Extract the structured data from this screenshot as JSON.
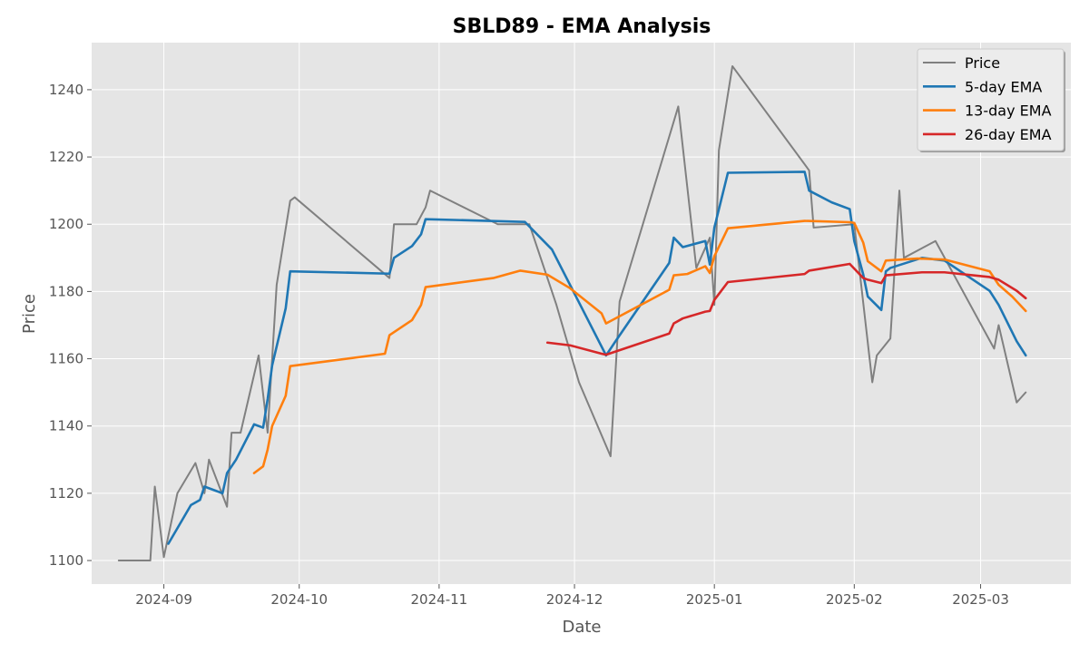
{
  "chart_data": {
    "type": "line",
    "title": "SBLD89 - EMA Analysis",
    "xlabel": "Date",
    "ylabel": "Price",
    "xlim": [
      "2024-08-16",
      "2025-03-21"
    ],
    "ylim": [
      1093,
      1254
    ],
    "x_ticks": [
      "2024-09-01",
      "2024-10-01",
      "2024-11-01",
      "2024-12-01",
      "2025-01-01",
      "2025-02-01",
      "2025-03-01"
    ],
    "x_tick_labels": [
      "2024-09",
      "2024-10",
      "2024-11",
      "2024-12",
      "2025-01",
      "2025-02",
      "2025-03"
    ],
    "y_ticks": [
      1100,
      1120,
      1140,
      1160,
      1180,
      1200,
      1220,
      1240
    ],
    "grid": true,
    "legend_position": "top-right",
    "series": [
      {
        "name": "Price",
        "color": "#808080",
        "points": [
          [
            "2024-08-22",
            1100
          ],
          [
            "2024-08-29",
            1100
          ],
          [
            "2024-08-30",
            1122
          ],
          [
            "2024-09-01",
            1101
          ],
          [
            "2024-09-04",
            1120
          ],
          [
            "2024-09-08",
            1129
          ],
          [
            "2024-09-10",
            1120
          ],
          [
            "2024-09-11",
            1130
          ],
          [
            "2024-09-15",
            1116
          ],
          [
            "2024-09-16",
            1138
          ],
          [
            "2024-09-18",
            1138
          ],
          [
            "2024-09-22",
            1161
          ],
          [
            "2024-09-24",
            1138
          ],
          [
            "2024-09-26",
            1182
          ],
          [
            "2024-09-29",
            1207
          ],
          [
            "2024-09-30",
            1208
          ],
          [
            "2024-10-21",
            1184
          ],
          [
            "2024-10-22",
            1200
          ],
          [
            "2024-10-27",
            1200
          ],
          [
            "2024-10-29",
            1205
          ],
          [
            "2024-10-30",
            1210
          ],
          [
            "2024-11-14",
            1200
          ],
          [
            "2024-11-21",
            1200
          ],
          [
            "2024-11-27",
            1176
          ],
          [
            "2024-12-02",
            1153
          ],
          [
            "2024-12-09",
            1131
          ],
          [
            "2024-12-11",
            1177
          ],
          [
            "2024-12-24",
            1235
          ],
          [
            "2024-12-26",
            1211
          ],
          [
            "2024-12-28",
            1187
          ],
          [
            "2024-12-31",
            1196
          ],
          [
            "2025-01-01",
            1176
          ],
          [
            "2025-01-02",
            1222
          ],
          [
            "2025-01-05",
            1247
          ],
          [
            "2025-01-22",
            1216
          ],
          [
            "2025-01-23",
            1199
          ],
          [
            "2025-02-01",
            1200
          ],
          [
            "2025-02-05",
            1153
          ],
          [
            "2025-02-06",
            1161
          ],
          [
            "2025-02-09",
            1166
          ],
          [
            "2025-02-11",
            1210
          ],
          [
            "2025-02-12",
            1190
          ],
          [
            "2025-02-19",
            1195
          ],
          [
            "2025-03-04",
            1163
          ],
          [
            "2025-03-05",
            1170
          ],
          [
            "2025-03-09",
            1147
          ],
          [
            "2025-03-11",
            1150
          ]
        ]
      },
      {
        "name": "5-day EMA",
        "color": "#1f77b4",
        "points": [
          [
            "2024-09-02",
            1105
          ],
          [
            "2024-09-07",
            1116.5
          ],
          [
            "2024-09-09",
            1118
          ],
          [
            "2024-09-10",
            1122
          ],
          [
            "2024-09-14",
            1120
          ],
          [
            "2024-09-15",
            1126
          ],
          [
            "2024-09-17",
            1130
          ],
          [
            "2024-09-21",
            1140.5
          ],
          [
            "2024-09-23",
            1139.5
          ],
          [
            "2024-09-24",
            1148
          ],
          [
            "2024-09-25",
            1158
          ],
          [
            "2024-09-28",
            1175
          ],
          [
            "2024-09-29",
            1186
          ],
          [
            "2024-10-21",
            1185.3
          ],
          [
            "2024-10-22",
            1190
          ],
          [
            "2024-10-26",
            1193.5
          ],
          [
            "2024-10-28",
            1197
          ],
          [
            "2024-10-29",
            1201.5
          ],
          [
            "2024-11-20",
            1200.7
          ],
          [
            "2024-11-26",
            1192.5
          ],
          [
            "2024-12-08",
            1161
          ],
          [
            "2024-12-10",
            1165
          ],
          [
            "2024-12-22",
            1188.5
          ],
          [
            "2024-12-23",
            1196
          ],
          [
            "2024-12-25",
            1193.2
          ],
          [
            "2024-12-30",
            1195
          ],
          [
            "2024-12-31",
            1188
          ],
          [
            "2025-01-01",
            1199
          ],
          [
            "2025-01-04",
            1215.3
          ],
          [
            "2025-01-21",
            1215.6
          ],
          [
            "2025-01-22",
            1210
          ],
          [
            "2025-01-27",
            1206.5
          ],
          [
            "2025-01-31",
            1204.5
          ],
          [
            "2025-02-01",
            1195
          ],
          [
            "2025-02-03",
            1185
          ],
          [
            "2025-02-04",
            1178.5
          ],
          [
            "2025-02-07",
            1174.5
          ],
          [
            "2025-02-08",
            1186
          ],
          [
            "2025-02-09",
            1187
          ],
          [
            "2025-02-16",
            1190
          ],
          [
            "2025-02-21",
            1189.2
          ],
          [
            "2025-03-03",
            1180.2
          ],
          [
            "2025-03-05",
            1176
          ],
          [
            "2025-03-09",
            1165.2
          ],
          [
            "2025-03-11",
            1161
          ]
        ]
      },
      {
        "name": "13-day EMA",
        "color": "#ff7f0e",
        "points": [
          [
            "2024-09-21",
            1126
          ],
          [
            "2024-09-23",
            1128
          ],
          [
            "2024-09-24",
            1133
          ],
          [
            "2024-09-25",
            1140
          ],
          [
            "2024-09-28",
            1149
          ],
          [
            "2024-09-29",
            1157.8
          ],
          [
            "2024-10-20",
            1161.5
          ],
          [
            "2024-10-21",
            1167
          ],
          [
            "2024-10-26",
            1171.5
          ],
          [
            "2024-10-28",
            1176
          ],
          [
            "2024-10-29",
            1181.3
          ],
          [
            "2024-11-13",
            1184
          ],
          [
            "2024-11-19",
            1186.2
          ],
          [
            "2024-11-25",
            1185
          ],
          [
            "2024-11-30",
            1181
          ],
          [
            "2024-12-07",
            1173.5
          ],
          [
            "2024-12-08",
            1170.5
          ],
          [
            "2024-12-22",
            1180.5
          ],
          [
            "2024-12-23",
            1184.8
          ],
          [
            "2024-12-26",
            1185.2
          ],
          [
            "2024-12-30",
            1187.5
          ],
          [
            "2024-12-31",
            1185.5
          ],
          [
            "2025-01-01",
            1190.5
          ],
          [
            "2025-01-04",
            1198.8
          ],
          [
            "2025-01-21",
            1201
          ],
          [
            "2025-01-31",
            1200.6
          ],
          [
            "2025-02-01",
            1200.4
          ],
          [
            "2025-02-03",
            1194.5
          ],
          [
            "2025-02-04",
            1189
          ],
          [
            "2025-02-07",
            1186
          ],
          [
            "2025-02-08",
            1189.2
          ],
          [
            "2025-02-15",
            1189.8
          ],
          [
            "2025-02-21",
            1189.5
          ],
          [
            "2025-03-03",
            1186
          ],
          [
            "2025-03-05",
            1182
          ],
          [
            "2025-03-08",
            1178.5
          ],
          [
            "2025-03-11",
            1174.2
          ]
        ]
      },
      {
        "name": "26-day EMA",
        "color": "#d62728",
        "points": [
          [
            "2024-11-25",
            1164.8
          ],
          [
            "2024-11-30",
            1164
          ],
          [
            "2024-12-07",
            1161.5
          ],
          [
            "2024-12-08",
            1161.2
          ],
          [
            "2024-12-22",
            1167.5
          ],
          [
            "2024-12-23",
            1170.5
          ],
          [
            "2024-12-25",
            1172
          ],
          [
            "2024-12-30",
            1174
          ],
          [
            "2024-12-31",
            1174.2
          ],
          [
            "2025-01-01",
            1177.5
          ],
          [
            "2025-01-04",
            1182.8
          ],
          [
            "2025-01-21",
            1185.2
          ],
          [
            "2025-01-22",
            1186.2
          ],
          [
            "2025-01-31",
            1188.2
          ],
          [
            "2025-02-03",
            1184
          ],
          [
            "2025-02-04",
            1183.5
          ],
          [
            "2025-02-07",
            1182.5
          ],
          [
            "2025-02-08",
            1184.8
          ],
          [
            "2025-02-16",
            1185.7
          ],
          [
            "2025-02-21",
            1185.7
          ],
          [
            "2025-03-03",
            1184.3
          ],
          [
            "2025-03-05",
            1183.5
          ],
          [
            "2025-03-09",
            1180.2
          ],
          [
            "2025-03-11",
            1178
          ]
        ]
      }
    ]
  }
}
